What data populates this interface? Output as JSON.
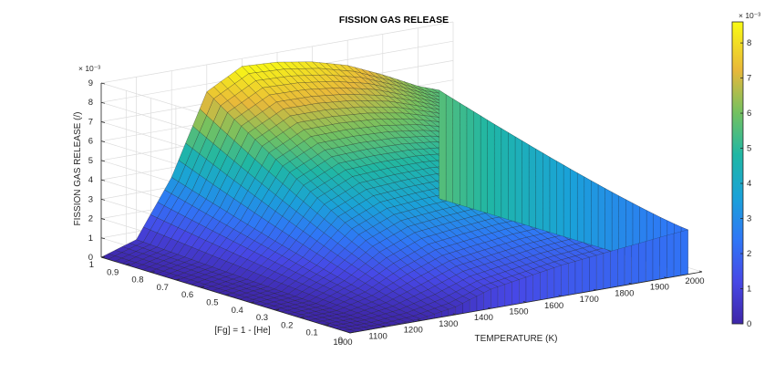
{
  "chart_data": {
    "type": "surface",
    "title": "FISSION GAS RELEASE",
    "xlabel": "TEMPERATURE (K)",
    "ylabel": "[Fg] = 1 - [He]",
    "zlabel": "FISSION GAS RELEASE (/)",
    "z_exponent": "× 10⁻³",
    "colorbar_exponent": "× 10⁻³",
    "xlim": [
      1000,
      2000
    ],
    "ylim": [
      0,
      1
    ],
    "zlim": [
      0,
      9
    ],
    "x_ticks": [
      1000,
      1100,
      1200,
      1300,
      1400,
      1500,
      1600,
      1700,
      1800,
      1900,
      2000
    ],
    "y_ticks": [
      0,
      0.1,
      0.2,
      0.3,
      0.4,
      0.5,
      0.6,
      0.7,
      0.8,
      0.9,
      1
    ],
    "z_ticks": [
      0,
      1,
      2,
      3,
      4,
      5,
      6,
      7,
      8,
      9
    ],
    "colorbar_ticks": [
      0,
      1,
      2,
      3,
      4,
      5,
      6,
      7,
      8
    ],
    "colorbar_range": [
      0,
      8.6
    ],
    "colormap": "parula",
    "grid": true,
    "surface_profile": {
      "note_units": "release in 1e-3",
      "temperature": [
        1000,
        1100,
        1200,
        1300,
        1400,
        1500,
        1600,
        1700,
        1800,
        1900,
        1960
      ],
      "release_at_fg_1": [
        0.0,
        0.6,
        3.5,
        7.6,
        8.6,
        8.5,
        8.2,
        7.7,
        6.9,
        6.0,
        5.6
      ],
      "release_at_fg_0": [
        0.0,
        0.0,
        0.1,
        0.4,
        1.0,
        1.3,
        1.6,
        1.8,
        2.0,
        2.2,
        2.3
      ]
    }
  }
}
